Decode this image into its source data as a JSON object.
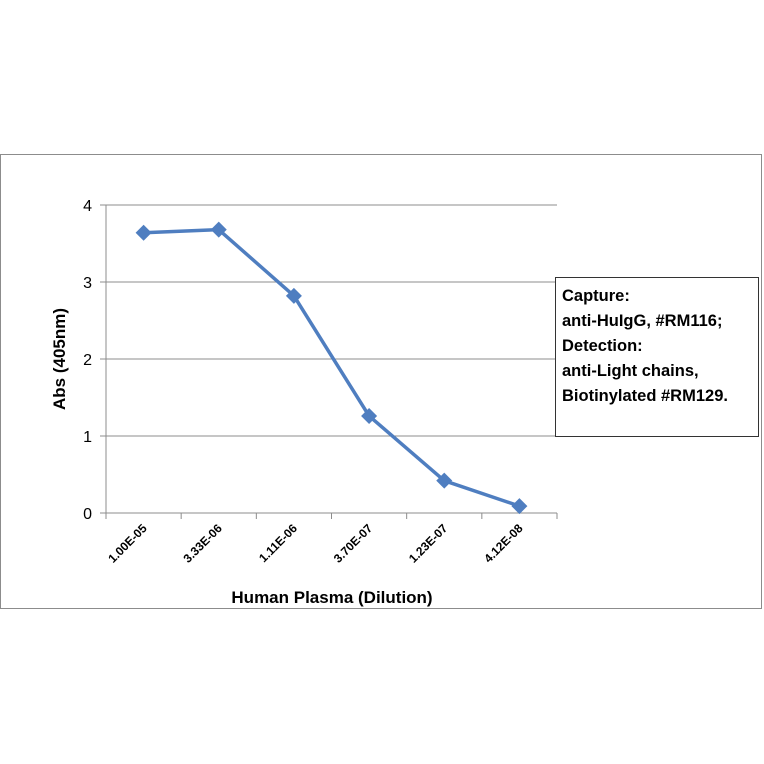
{
  "chart_data": {
    "type": "line",
    "categories": [
      "1.00E-05",
      "3.33E-06",
      "1.11E-06",
      "3.70E-07",
      "1.23E-07",
      "4.12E-08"
    ],
    "series": [
      {
        "values": [
          3.64,
          3.68,
          2.82,
          1.26,
          0.42,
          0.09
        ],
        "color": "#4f7ec0",
        "marker": "diamond"
      }
    ],
    "xlabel": "Human Plasma (Dilution)",
    "ylabel": "Abs (405nm)",
    "ylim": [
      0,
      4
    ],
    "yticks": [
      "0",
      "1",
      "2",
      "3",
      "4"
    ],
    "grid": "horizontal",
    "annotation": {
      "lines": [
        "Capture:",
        "anti-HuIgG, #RM116;",
        "Detection:",
        "anti-Light chains,",
        "Biotinylated #RM129."
      ],
      "placement": "right"
    }
  }
}
